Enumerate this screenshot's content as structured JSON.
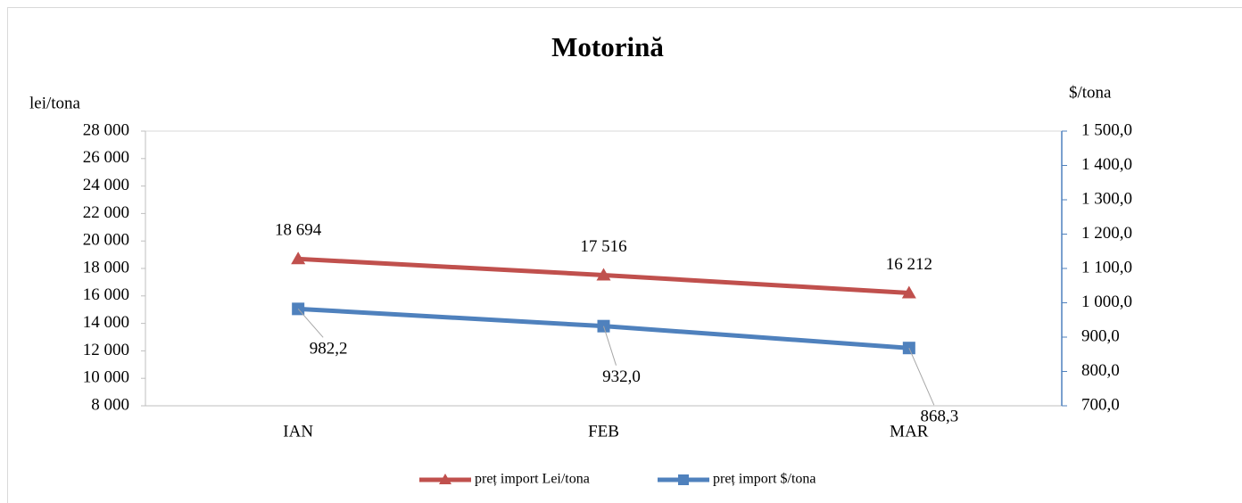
{
  "chart_data": {
    "type": "line",
    "title": "Motorină",
    "y_label": "lei/tona",
    "y2_label": "$/tona",
    "categories": [
      "IAN",
      "FEB",
      "MAR"
    ],
    "series": [
      {
        "name": "preț import Lei/tona",
        "color": "#c0504d",
        "marker": "triangle",
        "values": [
          18694,
          17516,
          16212
        ],
        "value_labels": [
          "18 694",
          "17 516",
          "16 212"
        ]
      },
      {
        "name": "preț import $/tona",
        "color": "#4f81bd",
        "marker": "square",
        "axis": "y2",
        "values": [
          982.2,
          932.0,
          868.3
        ],
        "value_labels": [
          "982,2",
          "932,0",
          "868,3"
        ]
      }
    ],
    "ylim": [
      8000,
      28000
    ],
    "yticks": [
      {
        "value": 8000,
        "label": "8 000"
      },
      {
        "value": 10000,
        "label": "10 000"
      },
      {
        "value": 12000,
        "label": "12 000"
      },
      {
        "value": 14000,
        "label": "14 000"
      },
      {
        "value": 16000,
        "label": "16 000"
      },
      {
        "value": 18000,
        "label": "18 000"
      },
      {
        "value": 20000,
        "label": "20 000"
      },
      {
        "value": 22000,
        "label": "22 000"
      },
      {
        "value": 24000,
        "label": "24 000"
      },
      {
        "value": 26000,
        "label": "26 000"
      },
      {
        "value": 28000,
        "label": "28 000"
      }
    ],
    "y2lim": [
      700,
      1500
    ],
    "y2ticks": [
      {
        "value": 700,
        "label": "700,0"
      },
      {
        "value": 800,
        "label": "800,0"
      },
      {
        "value": 900,
        "label": "900,0"
      },
      {
        "value": 1000,
        "label": "1 000,0"
      },
      {
        "value": 1100,
        "label": "1 100,0"
      },
      {
        "value": 1200,
        "label": "1 200,0"
      },
      {
        "value": 1300,
        "label": "1 300,0"
      },
      {
        "value": 1400,
        "label": "1 400,0"
      },
      {
        "value": 1500,
        "label": "1 500,0"
      }
    ],
    "legend": "bottom"
  }
}
